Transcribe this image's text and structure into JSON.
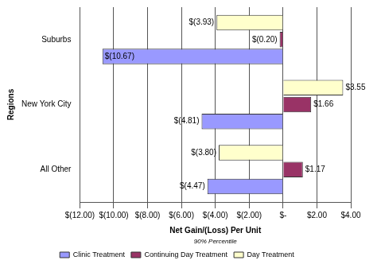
{
  "chart_data": {
    "type": "bar",
    "orientation": "horizontal",
    "x_label": "Net Gain/(Loss) Per Unit",
    "subtitle": "90% Percentile",
    "y_label": "Regions",
    "categories": [
      "Suburbs",
      "New York City",
      "All Other"
    ],
    "series": [
      {
        "name": "Clinic Treatment",
        "color": "#9999ff",
        "values": [
          -10.67,
          -4.81,
          -4.47
        ],
        "value_labels": [
          "$(10.67)",
          "$(4.81)",
          "$(4.47)"
        ]
      },
      {
        "name": "Continuing Day Treatment",
        "color": "#993366",
        "values": [
          -0.2,
          1.66,
          1.17
        ],
        "value_labels": [
          "$(0.20)",
          "$1.66",
          "$1.17"
        ]
      },
      {
        "name": "Day Treatment",
        "color": "#ffffcc",
        "values": [
          -3.93,
          3.55,
          -3.8
        ],
        "value_labels": [
          "$(3.93)",
          "$3.55",
          "$(3.80)"
        ]
      }
    ],
    "xlim": [
      -12,
      4
    ],
    "xticks": [
      {
        "value": -12,
        "label": "$(12.00)"
      },
      {
        "value": -10,
        "label": "$(10.00)"
      },
      {
        "value": -8,
        "label": "$(8.00)"
      },
      {
        "value": -6,
        "label": "$(6.00)"
      },
      {
        "value": -4,
        "label": "$(4.00)"
      },
      {
        "value": -2,
        "label": "$(2.00)"
      },
      {
        "value": 0,
        "label": "$-"
      },
      {
        "value": 2,
        "label": "$2.00"
      },
      {
        "value": 4,
        "label": "$4.00"
      }
    ],
    "grid": true,
    "legend": "bottom",
    "data_labels": true
  }
}
